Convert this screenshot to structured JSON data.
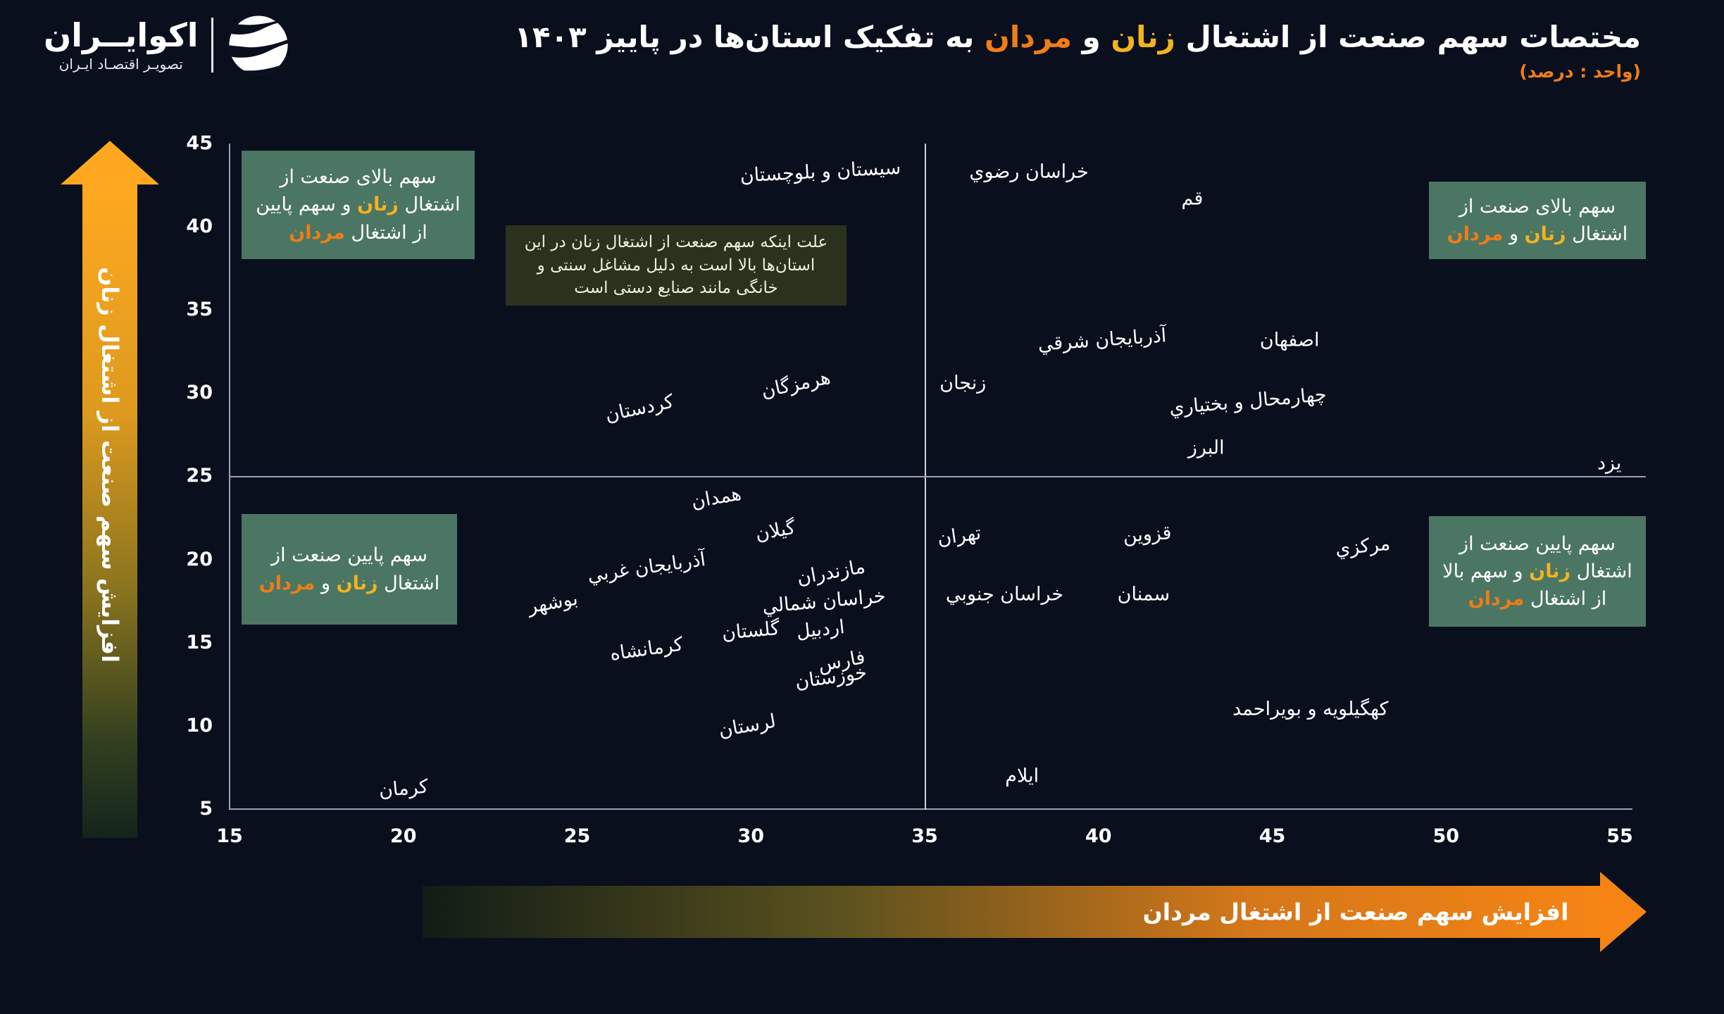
{
  "brand": {
    "name": "اکوایــران",
    "tagline": "تصویـر اقتصـاد ایـران"
  },
  "title": {
    "parts": [
      {
        "text": "مختصات سهم صنعت از اشتغال "
      },
      {
        "text": "زنان",
        "color": "women"
      },
      {
        "text": " و "
      },
      {
        "text": "مردان",
        "color": "men"
      },
      {
        "text": " به تفکیک استان‌ها در پاییز ۱۴۰۳"
      }
    ],
    "subtitle": "(واحد : درصد)"
  },
  "colors": {
    "background": "#0a0f1e",
    "women": "#f2b31f",
    "men": "#f07d15",
    "box_green": "#4b7663",
    "note_bg": "#2a321e",
    "note_text": "#f1efe0",
    "axis_line": "#9aa2b4",
    "divider_line": "#cdd3de",
    "text": "#ffffff",
    "arrow_orange": "#f79416"
  },
  "chart_data": {
    "type": "scatter",
    "title": "مختصات سهم صنعت از اشتغال زنان و مردان به تفکیک استان‌ها در پاییز ۱۴۰۳",
    "unit": "درصد",
    "x_axis": {
      "label": "افزایش سهم صنعت از اشتغال مردان",
      "min": 15,
      "max": 55,
      "ticks": [
        15,
        20,
        25,
        30,
        35,
        40,
        45,
        50,
        55
      ]
    },
    "y_axis": {
      "label": "افزایش سهم صنعت از اشتغال زنان",
      "min": 5,
      "max": 45,
      "ticks": [
        5,
        10,
        15,
        20,
        25,
        30,
        35,
        40,
        45
      ]
    },
    "quadrant_dividers": {
      "x": 35,
      "y": 25
    },
    "grid": false,
    "points": [
      {
        "name": "سیستان و بلوچستان",
        "x": 32.0,
        "y": 43.3,
        "rot": -3
      },
      {
        "name": "خراسان رضوي",
        "x": 38.0,
        "y": 43.3,
        "rot": 0
      },
      {
        "name": "قم",
        "x": 42.7,
        "y": 41.7,
        "rot": 0
      },
      {
        "name": "آذربایجان شرقي",
        "x": 40.1,
        "y": 33.2,
        "rot": -4
      },
      {
        "name": "اصفهان",
        "x": 45.5,
        "y": 33.2,
        "rot": 0
      },
      {
        "name": "زنجان",
        "x": 36.1,
        "y": 30.6,
        "rot": 0
      },
      {
        "name": "هرمزگان",
        "x": 31.3,
        "y": 30.5,
        "rot": -12
      },
      {
        "name": "کردستان",
        "x": 26.8,
        "y": 29.1,
        "rot": -12
      },
      {
        "name": "چهارمحال و بختیاري",
        "x": 44.3,
        "y": 29.5,
        "rot": -5
      },
      {
        "name": "البرز",
        "x": 43.1,
        "y": 26.7,
        "rot": 0
      },
      {
        "name": "یزد",
        "x": 54.7,
        "y": 25.8,
        "rot": 0
      },
      {
        "name": "همدان",
        "x": 29.0,
        "y": 23.7,
        "rot": -10
      },
      {
        "name": "گیلان",
        "x": 30.7,
        "y": 21.7,
        "rot": -10
      },
      {
        "name": "تهران",
        "x": 36.0,
        "y": 21.4,
        "rot": -8
      },
      {
        "name": "قزوین",
        "x": 41.4,
        "y": 21.5,
        "rot": -4
      },
      {
        "name": "مرکزي",
        "x": 47.6,
        "y": 20.8,
        "rot": -6
      },
      {
        "name": "آذربایجان غربي",
        "x": 27.0,
        "y": 19.5,
        "rot": -8
      },
      {
        "name": "مازندران",
        "x": 32.3,
        "y": 19.2,
        "rot": -10
      },
      {
        "name": "خراسان شمالي",
        "x": 32.1,
        "y": 17.5,
        "rot": -5
      },
      {
        "name": "سمنان",
        "x": 41.3,
        "y": 17.9,
        "rot": 0
      },
      {
        "name": "خراسان جنوبي",
        "x": 37.3,
        "y": 17.9,
        "rot": 0
      },
      {
        "name": "بوشهر",
        "x": 24.3,
        "y": 17.4,
        "rot": -10
      },
      {
        "name": "گلستان",
        "x": 30.0,
        "y": 15.7,
        "rot": -5
      },
      {
        "name": "اردبیل",
        "x": 32.0,
        "y": 15.8,
        "rot": -6
      },
      {
        "name": "کرمانشاه",
        "x": 27.0,
        "y": 14.6,
        "rot": -8
      },
      {
        "name": "فارس",
        "x": 32.6,
        "y": 13.9,
        "rot": -10
      },
      {
        "name": "خوزستان",
        "x": 32.3,
        "y": 12.9,
        "rot": -8
      },
      {
        "name": "لرستان",
        "x": 29.9,
        "y": 10.0,
        "rot": -10
      },
      {
        "name": "کهگیلویه و بویراحمد",
        "x": 46.1,
        "y": 11.0,
        "rot": 0
      },
      {
        "name": "ایلام",
        "x": 37.8,
        "y": 7.0,
        "rot": 0
      },
      {
        "name": "کرمان",
        "x": 20.0,
        "y": 6.2,
        "rot": -5
      }
    ]
  },
  "quadrant_labels": {
    "top_left": {
      "parts": [
        {
          "text": "سهم بالای صنعت از اشتغال "
        },
        {
          "text": "زنان",
          "color": "women"
        },
        {
          "text": " و سهم پایین از اشتغال "
        },
        {
          "text": "مردان",
          "color": "men"
        }
      ]
    },
    "top_right": {
      "parts": [
        {
          "text": "سهم بالای صنعت از اشتغال "
        },
        {
          "text": "زنان",
          "color": "women"
        },
        {
          "text": " و "
        },
        {
          "text": "مردان",
          "color": "men"
        }
      ]
    },
    "bottom_left": {
      "parts": [
        {
          "text": "سهم پایین صنعت از اشتغال "
        },
        {
          "text": "زنان",
          "color": "women"
        },
        {
          "text": " و "
        },
        {
          "text": "مردان",
          "color": "men"
        }
      ]
    },
    "bottom_right": {
      "parts": [
        {
          "text": "سهم پایین صنعت از اشتغال "
        },
        {
          "text": "زنان",
          "color": "women"
        },
        {
          "text": " و سهم بالا از اشتغال "
        },
        {
          "text": "مردان",
          "color": "men"
        }
      ]
    }
  },
  "note": {
    "text": "علت اینکه سهم صنعت از اشتغال زنان در این استان‌ها بالا است به دلیل مشاغل سنتی و خانگی مانند صنایع دستی است"
  }
}
